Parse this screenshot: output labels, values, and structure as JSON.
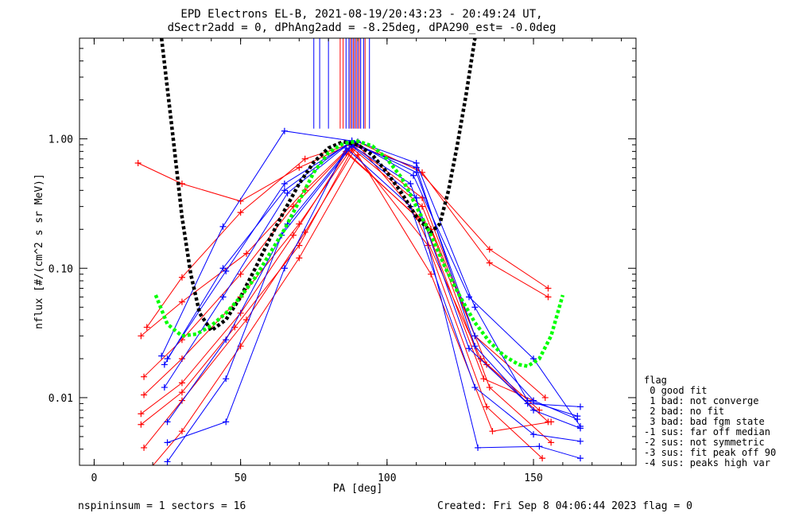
{
  "chart_data": {
    "type": "line",
    "title": "EPD Electrons EL-B, 2021-08-19/20:43:23 - 20:49:24 UT,",
    "subtitle": "dSectr2add = 0, dPhAng2add = -8.25deg, dPA290_est=  -0.0deg",
    "xlabel": "PA [deg]",
    "ylabel": "nflux [#/(cm^2 s sr MeV)]",
    "xlim": [
      -5,
      185
    ],
    "ylim": [
      0.003,
      6
    ],
    "yscale": "log",
    "x_ticks": [
      "0",
      "50",
      "100",
      "150"
    ],
    "y_ticks": [
      "0.01",
      "0.10",
      "1.00"
    ],
    "legend_title": "flag",
    "legend": [
      " 0 good fit",
      " 1 bad: not converge",
      " 2 bad: no fit",
      " 3 bad: bad fgm state",
      "-1 sus: far off median",
      "-2 sus: not symmetric",
      "-3 sus: fit peak off 90",
      "-4 sus: peaks high var"
    ],
    "footer_left": "nspininsum =  1  sectors = 16",
    "footer_right": "Created: Fri Sep  8 04:06:44 2023   flag = 0",
    "colors": {
      "red": "#ff0000",
      "blue": "#0000ff",
      "black_fit": "#000000",
      "green_fit": "#00ff00"
    },
    "series": [
      {
        "color": "red",
        "x": [
          15,
          30,
          50,
          70,
          88,
          110,
          135,
          155
        ],
        "y": [
          0.65,
          0.45,
          0.33,
          0.6,
          0.92,
          0.6,
          0.14,
          0.07
        ]
      },
      {
        "color": "red",
        "x": [
          18,
          30,
          50,
          72,
          90,
          112,
          135,
          155
        ],
        "y": [
          0.035,
          0.085,
          0.27,
          0.7,
          0.95,
          0.55,
          0.11,
          0.06
        ]
      },
      {
        "color": "red",
        "x": [
          16,
          30,
          52,
          72,
          88,
          112,
          130,
          154
        ],
        "y": [
          0.03,
          0.055,
          0.13,
          0.4,
          0.9,
          0.35,
          0.03,
          0.01
        ]
      },
      {
        "color": "red",
        "x": [
          17,
          30,
          50,
          68,
          86,
          110,
          132,
          152
        ],
        "y": [
          0.0145,
          0.028,
          0.09,
          0.3,
          0.8,
          0.25,
          0.02,
          0.008
        ]
      },
      {
        "color": "red",
        "x": [
          17,
          30,
          50,
          70,
          88,
          112,
          134,
          155
        ],
        "y": [
          0.0105,
          0.02,
          0.06,
          0.22,
          0.85,
          0.3,
          0.018,
          0.0065
        ]
      },
      {
        "color": "red",
        "x": [
          16,
          30,
          50,
          68,
          86,
          115,
          135,
          156
        ],
        "y": [
          0.0075,
          0.013,
          0.045,
          0.18,
          0.78,
          0.2,
          0.012,
          0.0045
        ]
      },
      {
        "color": "red",
        "x": [
          16,
          30,
          48,
          70,
          88,
          114,
          134,
          153
        ],
        "y": [
          0.0062,
          0.011,
          0.035,
          0.15,
          0.82,
          0.15,
          0.0085,
          0.0034
        ]
      },
      {
        "color": "red",
        "x": [
          17,
          30,
          52,
          72,
          90,
          113,
          133,
          150
        ],
        "y": [
          0.0041,
          0.0095,
          0.04,
          0.19,
          0.9,
          0.22,
          0.014,
          0.0095
        ]
      },
      {
        "color": "red",
        "x": [
          19,
          30,
          50,
          70,
          90,
          115,
          136,
          156
        ],
        "y": [
          0.0028,
          0.0055,
          0.025,
          0.12,
          0.75,
          0.09,
          0.0055,
          0.0065
        ]
      },
      {
        "color": "blue",
        "x": [
          25,
          45,
          65,
          88,
          110,
          130,
          150,
          165
        ],
        "y": [
          0.02,
          0.095,
          0.45,
          0.95,
          0.55,
          0.03,
          0.0095,
          0.0068
        ]
      },
      {
        "color": "blue",
        "x": [
          24,
          44,
          66,
          87,
          108,
          128,
          148,
          166
        ],
        "y": [
          0.012,
          0.06,
          0.38,
          0.92,
          0.45,
          0.024,
          0.009,
          0.0085
        ]
      },
      {
        "color": "blue",
        "x": [
          25,
          45,
          66,
          88,
          110,
          130,
          150,
          166
        ],
        "y": [
          0.0065,
          0.028,
          0.22,
          0.9,
          0.6,
          0.025,
          0.008,
          0.0058
        ]
      },
      {
        "color": "blue",
        "x": [
          25,
          45,
          65,
          86,
          108,
          130,
          150,
          166
        ],
        "y": [
          0.0045,
          0.0065,
          0.1,
          0.85,
          0.3,
          0.012,
          0.0052,
          0.0046
        ]
      },
      {
        "color": "blue",
        "x": [
          25,
          45,
          64,
          88,
          110,
          131,
          152,
          166
        ],
        "y": [
          0.0032,
          0.014,
          0.18,
          0.88,
          0.35,
          0.0041,
          0.0042,
          0.0034
        ]
      },
      {
        "color": "blue",
        "x": [
          24,
          44,
          65,
          88,
          109,
          128,
          150,
          166
        ],
        "y": [
          0.018,
          0.1,
          0.4,
          0.97,
          0.52,
          0.06,
          0.02,
          0.006
        ]
      },
      {
        "color": "blue",
        "x": [
          23,
          44,
          65,
          90,
          110,
          130,
          148,
          165
        ],
        "y": [
          0.021,
          0.21,
          1.15,
          0.95,
          0.65,
          0.05,
          0.0095,
          0.0072
        ]
      }
    ],
    "fits": [
      {
        "color": "black_fit",
        "x": [
          23,
          27,
          30,
          33,
          36,
          40,
          45,
          50,
          55,
          60,
          65,
          70,
          75,
          80,
          85,
          90,
          95,
          100,
          105,
          110,
          115,
          118,
          121,
          124,
          127,
          130
        ],
        "y": [
          6,
          1.0,
          0.25,
          0.09,
          0.045,
          0.033,
          0.04,
          0.06,
          0.1,
          0.17,
          0.28,
          0.45,
          0.66,
          0.85,
          0.95,
          0.9,
          0.75,
          0.55,
          0.38,
          0.25,
          0.19,
          0.22,
          0.4,
          0.9,
          2.2,
          6
        ]
      },
      {
        "color": "green_fit",
        "x": [
          21,
          25,
          30,
          35,
          40,
          45,
          50,
          55,
          60,
          65,
          70,
          75,
          80,
          85,
          90,
          95,
          100,
          105,
          110,
          115,
          120,
          125,
          130,
          135,
          140,
          145,
          148,
          152,
          156,
          160
        ],
        "y": [
          0.062,
          0.037,
          0.03,
          0.031,
          0.036,
          0.045,
          0.06,
          0.085,
          0.13,
          0.2,
          0.33,
          0.55,
          0.78,
          0.92,
          0.96,
          0.88,
          0.7,
          0.5,
          0.3,
          0.18,
          0.1,
          0.06,
          0.038,
          0.027,
          0.021,
          0.018,
          0.0175,
          0.02,
          0.03,
          0.062
        ]
      }
    ],
    "vertical_lines": [
      {
        "color": "blue",
        "x": [
          75,
          77,
          80,
          86,
          87,
          88,
          89,
          90,
          91,
          92,
          94
        ]
      },
      {
        "color": "red",
        "x": [
          84,
          85,
          87.5,
          88.5,
          89.5,
          90.5,
          92.5
        ]
      }
    ],
    "vertical_lines_bottom": 1.2
  }
}
